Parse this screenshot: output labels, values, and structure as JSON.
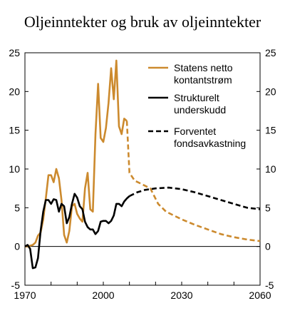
{
  "chart_data": {
    "type": "line",
    "title": "Oljeinntekter og bruk av oljeinntekter",
    "xlim": [
      1970,
      2060
    ],
    "ylim": [
      -5,
      25
    ],
    "x_ticks": [
      1970,
      2000,
      2030,
      2060
    ],
    "y_ticks": [
      -5,
      0,
      5,
      10,
      15,
      20,
      25
    ],
    "legend_position": "top-right",
    "series": [
      {
        "name": "Statens netto kontantstrøm",
        "color": "#CC8A2E",
        "style": "solid",
        "points": [
          [
            1970,
            0.0
          ],
          [
            1971,
            0.0
          ],
          [
            1972,
            0.1
          ],
          [
            1973,
            0.2
          ],
          [
            1974,
            0.5
          ],
          [
            1975,
            1.4
          ],
          [
            1976,
            1.8
          ],
          [
            1977,
            3.5
          ],
          [
            1978,
            6.2
          ],
          [
            1979,
            9.2
          ],
          [
            1980,
            9.2
          ],
          [
            1981,
            8.3
          ],
          [
            1982,
            10.0
          ],
          [
            1983,
            8.8
          ],
          [
            1984,
            6.0
          ],
          [
            1985,
            1.5
          ],
          [
            1986,
            0.5
          ],
          [
            1987,
            2.0
          ],
          [
            1988,
            5.2
          ],
          [
            1989,
            5.5
          ],
          [
            1990,
            4.2
          ],
          [
            1991,
            3.6
          ],
          [
            1992,
            3.2
          ],
          [
            1993,
            7.5
          ],
          [
            1994,
            9.5
          ],
          [
            1995,
            4.8
          ],
          [
            1996,
            4.5
          ],
          [
            1997,
            14.5
          ],
          [
            1998,
            21.0
          ],
          [
            1999,
            14.0
          ],
          [
            2000,
            13.5
          ],
          [
            2001,
            15.3
          ],
          [
            2002,
            18.5
          ],
          [
            2003,
            23.0
          ],
          [
            2004,
            19.0
          ],
          [
            2005,
            24.0
          ],
          [
            2006,
            15.5
          ],
          [
            2007,
            14.5
          ],
          [
            2008,
            16.5
          ],
          [
            2009,
            16.2
          ]
        ]
      },
      {
        "name": "",
        "color": "#CC8A2E",
        "style": "dashed",
        "points": [
          [
            2009,
            16.2
          ],
          [
            2010,
            9.5
          ],
          [
            2012,
            8.5
          ],
          [
            2015,
            8.0
          ],
          [
            2018,
            7.5
          ],
          [
            2021,
            5.5
          ],
          [
            2024,
            4.5
          ],
          [
            2027,
            4.0
          ],
          [
            2030,
            3.5
          ],
          [
            2035,
            2.8
          ],
          [
            2040,
            2.2
          ],
          [
            2045,
            1.6
          ],
          [
            2050,
            1.2
          ],
          [
            2055,
            0.9
          ],
          [
            2060,
            0.7
          ]
        ]
      },
      {
        "name": "Strukturelt underskudd",
        "color": "#000000",
        "style": "solid",
        "points": [
          [
            1970,
            0.0
          ],
          [
            1971,
            0.2
          ],
          [
            1972,
            -0.3
          ],
          [
            1973,
            -2.8
          ],
          [
            1974,
            -2.7
          ],
          [
            1975,
            -1.5
          ],
          [
            1976,
            2.0
          ],
          [
            1977,
            4.5
          ],
          [
            1978,
            6.0
          ],
          [
            1979,
            6.0
          ],
          [
            1980,
            5.5
          ],
          [
            1981,
            6.1
          ],
          [
            1982,
            6.0
          ],
          [
            1983,
            4.5
          ],
          [
            1984,
            5.5
          ],
          [
            1985,
            5.2
          ],
          [
            1986,
            3.0
          ],
          [
            1987,
            3.8
          ],
          [
            1988,
            5.5
          ],
          [
            1989,
            6.8
          ],
          [
            1990,
            6.3
          ],
          [
            1991,
            5.2
          ],
          [
            1992,
            4.8
          ],
          [
            1993,
            3.2
          ],
          [
            1994,
            2.5
          ],
          [
            1995,
            2.2
          ],
          [
            1996,
            2.2
          ],
          [
            1997,
            1.6
          ],
          [
            1998,
            2.0
          ],
          [
            1999,
            3.2
          ],
          [
            2000,
            3.3
          ],
          [
            2001,
            3.3
          ],
          [
            2002,
            3.0
          ],
          [
            2003,
            3.3
          ],
          [
            2004,
            4.0
          ],
          [
            2005,
            5.5
          ],
          [
            2006,
            5.5
          ],
          [
            2007,
            5.2
          ],
          [
            2008,
            5.8
          ],
          [
            2009,
            6.2
          ],
          [
            2010,
            6.5
          ]
        ]
      },
      {
        "name": "Forventet fondsavkastning",
        "color": "#000000",
        "style": "dashed",
        "points": [
          [
            2010,
            6.5
          ],
          [
            2013,
            7.0
          ],
          [
            2016,
            7.3
          ],
          [
            2020,
            7.5
          ],
          [
            2025,
            7.6
          ],
          [
            2030,
            7.4
          ],
          [
            2035,
            7.0
          ],
          [
            2040,
            6.5
          ],
          [
            2045,
            6.0
          ],
          [
            2050,
            5.5
          ],
          [
            2055,
            5.0
          ],
          [
            2060,
            4.8
          ]
        ]
      }
    ],
    "legend": [
      {
        "lines": [
          "Statens netto",
          "kontantstrøm"
        ],
        "color": "#CC8A2E",
        "style": "solid"
      },
      {
        "lines": [
          "Strukturelt",
          "underskudd"
        ],
        "color": "#000000",
        "style": "solid"
      },
      {
        "lines": [
          "Forventet",
          "fondsavkastning"
        ],
        "color": "#000000",
        "style": "dashed"
      }
    ]
  }
}
